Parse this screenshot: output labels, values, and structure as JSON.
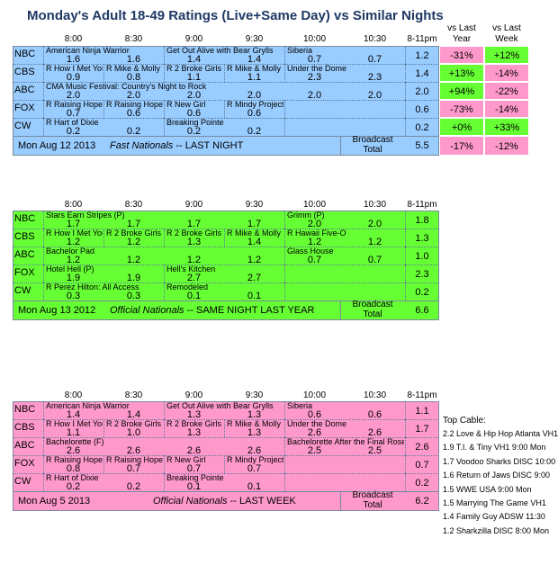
{
  "chart_data": {
    "type": "table",
    "title": "Monday's Adult 18-49 Ratings (Live+Same Day) vs Similar Nights",
    "time_slots": [
      "8:00",
      "8:30",
      "9:00",
      "9:30",
      "10:00",
      "10:30",
      "8-11pm"
    ],
    "compare_headers": {
      "vs_last_year": [
        "vs Last",
        "Year"
      ],
      "vs_last_week": [
        "vs Last",
        "Week"
      ]
    },
    "broadcast_total_label": [
      "Broadcast",
      "Total"
    ],
    "colors": {
      "last_night": "#99ccff",
      "last_year": "#66ff33",
      "last_week": "#ff99cc",
      "positive": "#66ff33",
      "negative": "#ff99cc"
    },
    "panels": [
      {
        "id": "last_night",
        "footer_date": "Mon Aug 12 2013",
        "footer_label": "Fast Nationals -- LAST NIGHT",
        "footer_italic": "Fast Nationals",
        "footer_rest": " -- LAST NIGHT",
        "total": "5.5",
        "total_vs_year": "-17%",
        "total_vs_week": "-12%",
        "rows": [
          {
            "network": "NBC",
            "blocks": [
              {
                "start": 0,
                "span": 2,
                "label": "American Ninja Warrior"
              },
              {
                "start": 2,
                "span": 2,
                "label": "Get Out Alive with Bear Grylls"
              },
              {
                "start": 4,
                "span": 2,
                "label": "Siberia"
              }
            ],
            "values": [
              "1.6",
              "1.6",
              "1.4",
              "1.4",
              "0.7",
              "0.7"
            ],
            "avg": "1.2",
            "vs_year": "-31%",
            "vs_week": "+12%"
          },
          {
            "network": "CBS",
            "blocks": [
              {
                "start": 0,
                "span": 1,
                "label": "R How I Met Your Mother"
              },
              {
                "start": 1,
                "span": 1,
                "label": "R Mike & Molly"
              },
              {
                "start": 2,
                "span": 1,
                "label": "R 2 Broke Girls"
              },
              {
                "start": 3,
                "span": 1,
                "label": "R Mike & Molly"
              },
              {
                "start": 4,
                "span": 2,
                "label": "Under the Dome"
              }
            ],
            "values": [
              "0.9",
              "0.8",
              "1.1",
              "1.1",
              "2.3",
              "2.3"
            ],
            "avg": "1.4",
            "vs_year": "+13%",
            "vs_week": "-14%"
          },
          {
            "network": "ABC",
            "blocks": [
              {
                "start": 0,
                "span": 6,
                "label": "CMA Music Festival: Country's Night to Rock"
              }
            ],
            "values": [
              "2.0",
              "2.0",
              "2.0",
              "2.0",
              "2.0",
              "2.0"
            ],
            "avg": "2.0",
            "vs_year": "+94%",
            "vs_week": "-22%"
          },
          {
            "network": "FOX",
            "blocks": [
              {
                "start": 0,
                "span": 1,
                "label": "R Raising Hope"
              },
              {
                "start": 1,
                "span": 1,
                "label": "R Raising Hope"
              },
              {
                "start": 2,
                "span": 1,
                "label": "R New Girl"
              },
              {
                "start": 3,
                "span": 1,
                "label": "R Mindy Project"
              },
              {
                "start": 4,
                "span": 2,
                "label": ""
              }
            ],
            "values": [
              "0.7",
              "0.6",
              "0.6",
              "0.6",
              "",
              ""
            ],
            "avg": "0.6",
            "vs_year": "-73%",
            "vs_week": "-14%"
          },
          {
            "network": "CW",
            "blocks": [
              {
                "start": 0,
                "span": 2,
                "label": "R Hart of Dixie"
              },
              {
                "start": 2,
                "span": 2,
                "label": "Breaking Pointe"
              },
              {
                "start": 4,
                "span": 2,
                "label": ""
              }
            ],
            "values": [
              "0.2",
              "0.2",
              "0.2",
              "0.2",
              "",
              ""
            ],
            "avg": "0.2",
            "vs_year": "+0%",
            "vs_week": "+33%"
          }
        ]
      },
      {
        "id": "last_year",
        "footer_date": "Mon Aug 13 2012",
        "footer_label": "Official Nationals -- SAME NIGHT LAST YEAR",
        "footer_italic": "Official Nationals",
        "footer_rest": " -- SAME NIGHT LAST YEAR",
        "total": "6.6",
        "rows": [
          {
            "network": "NBC",
            "blocks": [
              {
                "start": 0,
                "span": 4,
                "label": "Stars Earn Stripes (P)"
              },
              {
                "start": 4,
                "span": 2,
                "label": "Grimm (P)"
              }
            ],
            "values": [
              "1.7",
              "1.7",
              "1.7",
              "1.7",
              "2.0",
              "2.0"
            ],
            "avg": "1.8"
          },
          {
            "network": "CBS",
            "blocks": [
              {
                "start": 0,
                "span": 1,
                "label": "R How I Met Your Mother"
              },
              {
                "start": 1,
                "span": 1,
                "label": "R 2 Broke Girls"
              },
              {
                "start": 2,
                "span": 1,
                "label": "R 2 Broke Girls"
              },
              {
                "start": 3,
                "span": 1,
                "label": "R Mike & Molly"
              },
              {
                "start": 4,
                "span": 2,
                "label": "R Hawaii Five-O"
              }
            ],
            "values": [
              "1.2",
              "1.2",
              "1.3",
              "1.4",
              "1.2",
              "1.2"
            ],
            "avg": "1.3"
          },
          {
            "network": "ABC",
            "blocks": [
              {
                "start": 0,
                "span": 4,
                "label": "Bachelor Pad"
              },
              {
                "start": 4,
                "span": 2,
                "label": "Glass House"
              }
            ],
            "values": [
              "1.2",
              "1.2",
              "1.2",
              "1.2",
              "0.7",
              "0.7"
            ],
            "avg": "1.0"
          },
          {
            "network": "FOX",
            "blocks": [
              {
                "start": 0,
                "span": 2,
                "label": "Hotel Hell (P)"
              },
              {
                "start": 2,
                "span": 2,
                "label": "Hell's Kitchen"
              },
              {
                "start": 4,
                "span": 2,
                "label": ""
              }
            ],
            "values": [
              "1.9",
              "1.9",
              "2.7",
              "2.7",
              "",
              ""
            ],
            "avg": "2.3"
          },
          {
            "network": "CW",
            "blocks": [
              {
                "start": 0,
                "span": 2,
                "label": "R Perez Hilton: All Access"
              },
              {
                "start": 2,
                "span": 2,
                "label": "Remodeled"
              },
              {
                "start": 4,
                "span": 2,
                "label": ""
              }
            ],
            "values": [
              "0.3",
              "0.3",
              "0.1",
              "0.1",
              "",
              ""
            ],
            "avg": "0.2"
          }
        ]
      },
      {
        "id": "last_week",
        "footer_date": "Mon Aug 5 2013",
        "footer_label": "Official Nationals -- LAST WEEK",
        "footer_italic": "Official Nationals",
        "footer_rest": " -- LAST WEEK",
        "total": "6.2",
        "rows": [
          {
            "network": "NBC",
            "blocks": [
              {
                "start": 0,
                "span": 2,
                "label": "American Ninja Warrior"
              },
              {
                "start": 2,
                "span": 2,
                "label": "Get Out Alive with Bear Grylls"
              },
              {
                "start": 4,
                "span": 2,
                "label": "Siberia"
              }
            ],
            "values": [
              "1.4",
              "1.4",
              "1.3",
              "1.3",
              "0.6",
              "0.6"
            ],
            "avg": "1.1"
          },
          {
            "network": "CBS",
            "blocks": [
              {
                "start": 0,
                "span": 1,
                "label": "R How I Met Your Mother"
              },
              {
                "start": 1,
                "span": 1,
                "label": "R 2 Broke Girls"
              },
              {
                "start": 2,
                "span": 1,
                "label": "R 2 Broke Girls"
              },
              {
                "start": 3,
                "span": 1,
                "label": "R Mike & Molly"
              },
              {
                "start": 4,
                "span": 2,
                "label": "Under the Dome"
              }
            ],
            "values": [
              "1.1",
              "1.0",
              "1.3",
              "1.3",
              "2.6",
              "2.6"
            ],
            "avg": "1.7"
          },
          {
            "network": "ABC",
            "blocks": [
              {
                "start": 0,
                "span": 4,
                "label": "Bachelorette (F)"
              },
              {
                "start": 4,
                "span": 2,
                "label": "Bachelorette After the Final Rose"
              }
            ],
            "values": [
              "2.6",
              "2.6",
              "2.6",
              "2.6",
              "2.5",
              "2.5"
            ],
            "avg": "2.6"
          },
          {
            "network": "FOX",
            "blocks": [
              {
                "start": 0,
                "span": 1,
                "label": "R Raising Hope"
              },
              {
                "start": 1,
                "span": 1,
                "label": "R Raising Hope"
              },
              {
                "start": 2,
                "span": 1,
                "label": "R New Girl"
              },
              {
                "start": 3,
                "span": 1,
                "label": "R Mindy Project"
              },
              {
                "start": 4,
                "span": 2,
                "label": ""
              }
            ],
            "values": [
              "0.8",
              "0.7",
              "0.7",
              "0.7",
              "",
              ""
            ],
            "avg": "0.7"
          },
          {
            "network": "CW",
            "blocks": [
              {
                "start": 0,
                "span": 2,
                "label": "R Hart of Dixie"
              },
              {
                "start": 2,
                "span": 2,
                "label": "Breaking Pointe"
              },
              {
                "start": 4,
                "span": 2,
                "label": ""
              }
            ],
            "values": [
              "0.2",
              "0.2",
              "0.1",
              "0.1",
              "",
              ""
            ],
            "avg": "0.2"
          }
        ]
      }
    ],
    "top_cable": {
      "heading": "Top Cable:",
      "items": [
        "2.2 Love & Hip Hop Atlanta VH1",
        "1.9 T.I. & Tiny VH1 9:00 Mon",
        "1.7 Voodoo Sharks DISC 10:00",
        "1.6 Return of Jaws DISC 9:00",
        "1.5 WWE USA 9:00 Mon",
        "1.5 Marrying The Game VH1",
        "1.4 Family Guy ADSW 11:30",
        "1.2 Sharkzilla DISC 8:00 Mon"
      ]
    }
  }
}
